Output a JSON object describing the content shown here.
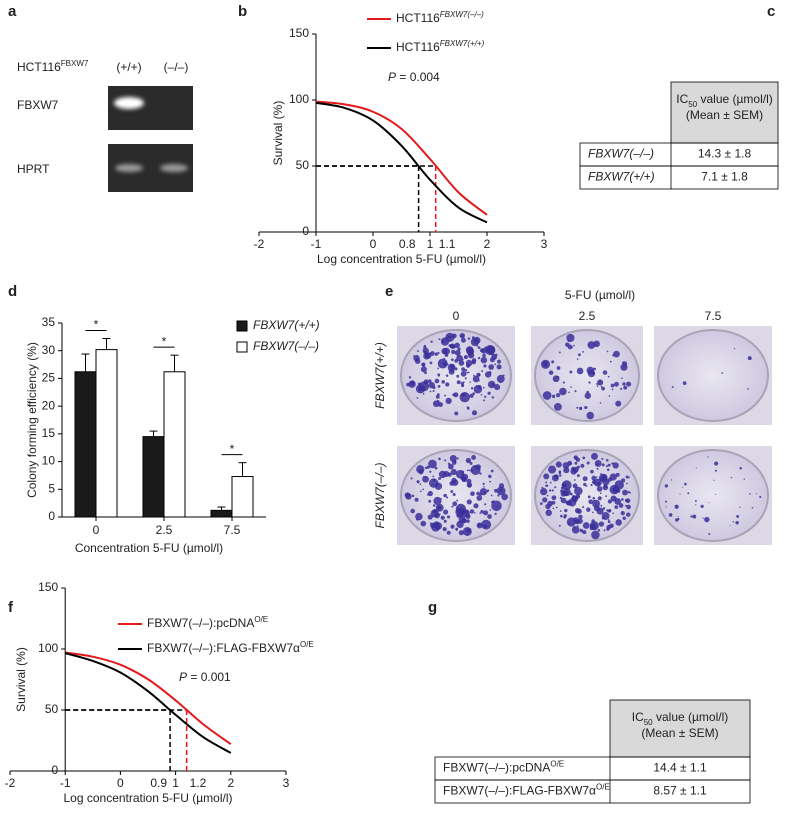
{
  "panel_a": {
    "label": "a",
    "cell_line": "HCT116",
    "cell_line_sup": "FBXW7",
    "columns": [
      "(+/+)",
      "(–/–)"
    ],
    "rows": [
      "FBXW7",
      "HPRT"
    ]
  },
  "chart_data": [
    {
      "type": "line",
      "panel": "b",
      "x": [
        -1,
        -0.5,
        0,
        0.5,
        1,
        1.5,
        2
      ],
      "series": [
        {
          "name": "HCT116",
          "name_sup": "FBXW7(–/–)",
          "color": "#e31a1c",
          "values": [
            98.8,
            96.7,
            91.1,
            78.1,
            55.3,
            30.0,
            13.0
          ]
        },
        {
          "name": "HCT116",
          "name_sup": "FBXW7(+/+)",
          "color": "#000000",
          "values": [
            97.8,
            94.0,
            84.5,
            65.4,
            39.6,
            18.5,
            7.3
          ]
        }
      ],
      "p_symbol": "P",
      "p_text": " = 0.004",
      "x_label": "Log concentration 5-FU (µmol/l)",
      "y_label": "Survival (%)",
      "xlim": [
        -2,
        3
      ],
      "ylim": [
        0,
        150
      ],
      "xticks": [
        -2,
        -1,
        0,
        1,
        2,
        3
      ],
      "yticks": [
        0,
        50,
        100,
        150
      ],
      "yaxis_crossing": -1,
      "threshold": 50,
      "markers": [
        {
          "value": 0.8,
          "color": "#000000"
        },
        {
          "value": 1.1,
          "color": "#e31a1c"
        }
      ]
    },
    {
      "type": "bar",
      "panel": "d",
      "categories": [
        "0",
        "2.5",
        "7.5"
      ],
      "series": [
        {
          "name": "FBXW7(+/+)",
          "color": "#1a1a1a",
          "values": [
            26.2,
            14.5,
            1.2
          ],
          "errors": [
            3.2,
            1.0,
            0.6
          ]
        },
        {
          "name": "FBXW7(–/–)",
          "color": "#ffffff",
          "values": [
            30.2,
            26.2,
            7.3
          ],
          "errors": [
            2.0,
            3.0,
            2.5
          ]
        }
      ],
      "significance": [
        "*",
        "*",
        "*"
      ],
      "x_label": "Concentration 5-FU (µmol/l)",
      "y_label": "Colony forming efficiency (%)",
      "ylim": [
        0,
        35
      ],
      "yticks": [
        0,
        5,
        10,
        15,
        20,
        25,
        30,
        35
      ]
    },
    {
      "type": "line",
      "panel": "f",
      "x": [
        -1,
        -0.5,
        0,
        0.5,
        1,
        1.5,
        2
      ],
      "series": [
        {
          "name": "FBXW7(–/–):pcDNA",
          "name_sup": "O/E",
          "color": "#e31a1c",
          "values": [
            97.1,
            93.7,
            87.1,
            75.2,
            57.9,
            38.3,
            22.0
          ]
        },
        {
          "name": "FBXW7(–/–):FLAG-FBXW7α",
          "name_sup": "O/E",
          "color": "#000000",
          "values": [
            96.6,
            90.2,
            80.7,
            65.4,
            46.1,
            27.8,
            14.8
          ]
        }
      ],
      "p_symbol": "P",
      "p_text": " = 0.001",
      "x_label": "Log concentration 5-FU (µmol/l)",
      "y_label": "Survival (%)",
      "xlim": [
        -2,
        3
      ],
      "ylim": [
        0,
        150
      ],
      "xticks": [
        -2,
        -1,
        0,
        1,
        2,
        3
      ],
      "yticks": [
        0,
        50,
        100,
        150
      ],
      "yaxis_crossing": -1,
      "threshold": 50,
      "markers": [
        {
          "value": 0.9,
          "color": "#000000"
        },
        {
          "value": 1.2,
          "color": "#e31a1c"
        }
      ]
    }
  ],
  "panel_c": {
    "label": "c",
    "header": {
      "prefix": "IC",
      "subscript": "50",
      "suffix": " value (µmol/l)",
      "line2": "(Mean ± SEM)"
    },
    "rows": [
      {
        "name": "FBXW7(–/–)",
        "value": "14.3 ± 1.8"
      },
      {
        "name": "FBXW7(+/+)",
        "value": "7.1 ± 1.8"
      }
    ]
  },
  "panel_e": {
    "label": "e",
    "title": "5-FU (µmol/l)",
    "columns": [
      "0",
      "2.5",
      "7.5"
    ],
    "rows": [
      "FBXW7(+/+)",
      "FBXW7(–/–)"
    ]
  },
  "panel_g": {
    "label": "g",
    "header": {
      "prefix": "IC",
      "subscript": "50",
      "suffix": " value (µmol/l)",
      "line2": "(Mean ± SEM)"
    },
    "rows": [
      {
        "name": "FBXW7(–/–):pcDNA",
        "sup": "O/E",
        "value": "14.4 ± 1.1"
      },
      {
        "name": "FBXW7(–/–):FLAG-FBXW7α",
        "sup": "O/E",
        "value": "8.57 ± 1.1"
      }
    ]
  }
}
